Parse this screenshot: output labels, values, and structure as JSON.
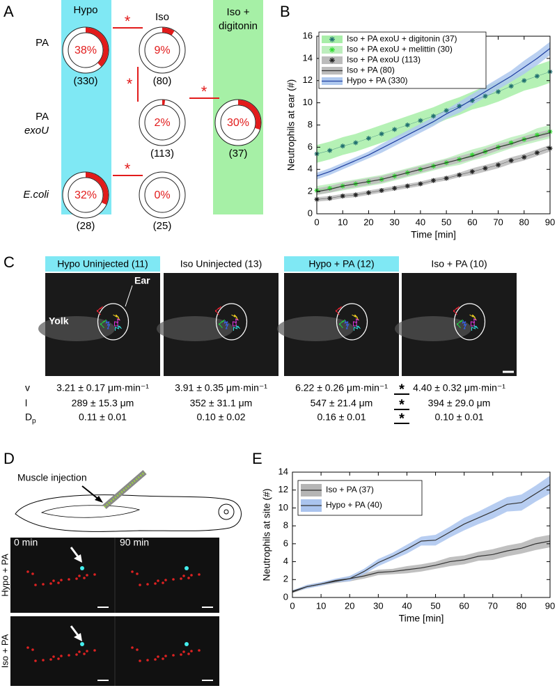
{
  "panel_labels": [
    "A",
    "B",
    "C",
    "D",
    "E"
  ],
  "panel_a": {
    "columns": [
      [
        "Hypo"
      ],
      [
        "Iso"
      ],
      [
        "Iso +",
        "digitonin"
      ]
    ],
    "rows": [
      [
        "PA"
      ],
      [
        "PA",
        "exoU"
      ],
      [
        "E.coli"
      ]
    ],
    "donuts": [
      {
        "value": 38,
        "label": "38%",
        "n": "(330)"
      },
      {
        "value": 9,
        "label": "9%",
        "n": "(80)"
      },
      {
        "value": 2,
        "label": "2%",
        "n": "(113)"
      },
      {
        "value": 30,
        "label": "30%",
        "n": "(37)"
      },
      {
        "value": 32,
        "label": "32%",
        "n": "(28)"
      },
      {
        "value": 0,
        "label": "0%",
        "n": "(25)"
      }
    ],
    "significance": [
      "*",
      "*",
      "*",
      "*"
    ]
  },
  "chart_data": [
    {
      "type": "line",
      "xlabel": "Time [min]",
      "ylabel": "Neutrophils at ear (#)",
      "x": [
        0,
        5,
        10,
        15,
        20,
        25,
        30,
        35,
        40,
        45,
        50,
        55,
        60,
        65,
        70,
        75,
        80,
        85,
        90
      ],
      "xlim": [
        0,
        90
      ],
      "xticks": [
        0,
        10,
        20,
        30,
        40,
        50,
        60,
        70,
        80,
        90
      ],
      "ylim": [
        0,
        16
      ],
      "yticks": [
        0,
        2,
        4,
        6,
        8,
        10,
        12,
        14,
        16
      ],
      "series": [
        {
          "name": "Iso + PA exoU + digitonin (37)",
          "marker": "star",
          "color": "#1f6f6f",
          "band_color": "#a8eea8",
          "values": [
            5.4,
            5.7,
            6.1,
            6.4,
            6.8,
            7.2,
            7.6,
            8.0,
            8.4,
            8.8,
            9.3,
            9.7,
            10.2,
            10.6,
            11.0,
            11.5,
            12.0,
            12.4,
            12.8
          ],
          "error": [
            0.8,
            0.8,
            0.8,
            0.8,
            0.8,
            0.8,
            0.8,
            0.8,
            0.8,
            0.8,
            0.8,
            0.8,
            0.8,
            0.9,
            0.9,
            0.9,
            0.9,
            1.0,
            1.0
          ]
        },
        {
          "name": "Iso + PA exoU + melittin (30)",
          "marker": "star",
          "color": "#33dd33",
          "band_color": "#bdeebd",
          "values": [
            2.1,
            2.3,
            2.5,
            2.7,
            2.9,
            3.1,
            3.4,
            3.7,
            4.0,
            4.3,
            4.6,
            4.9,
            5.3,
            5.6,
            6.0,
            6.4,
            6.7,
            7.1,
            7.4
          ],
          "error": [
            0.4,
            0.4,
            0.4,
            0.4,
            0.4,
            0.4,
            0.4,
            0.4,
            0.4,
            0.4,
            0.4,
            0.5,
            0.5,
            0.5,
            0.5,
            0.5,
            0.5,
            0.6,
            0.6
          ]
        },
        {
          "name": "Iso + PA exoU (113)",
          "marker": "star",
          "color": "#222222",
          "band_color": "#bbbbbb",
          "values": [
            1.3,
            1.4,
            1.6,
            1.7,
            1.9,
            2.1,
            2.3,
            2.5,
            2.7,
            3.0,
            3.2,
            3.5,
            3.8,
            4.1,
            4.4,
            4.8,
            5.1,
            5.5,
            5.9
          ],
          "error": [
            0.2,
            0.2,
            0.2,
            0.2,
            0.2,
            0.2,
            0.2,
            0.2,
            0.2,
            0.2,
            0.2,
            0.2,
            0.3,
            0.3,
            0.3,
            0.3,
            0.3,
            0.3,
            0.3
          ]
        },
        {
          "name": "Iso + PA (80)",
          "marker": "line",
          "color": "#333333",
          "band_color": "#bbbbbb",
          "values": [
            2.0,
            2.2,
            2.5,
            2.7,
            2.9,
            3.1,
            3.4,
            3.7,
            4.0,
            4.3,
            4.6,
            4.9,
            5.2,
            5.6,
            6.0,
            6.3,
            6.7,
            7.0,
            7.3
          ],
          "error": [
            0.3,
            0.3,
            0.3,
            0.3,
            0.3,
            0.3,
            0.3,
            0.3,
            0.3,
            0.3,
            0.3,
            0.3,
            0.3,
            0.3,
            0.3,
            0.3,
            0.3,
            0.3,
            0.3
          ]
        },
        {
          "name": "Hypo + PA (330)",
          "marker": "line",
          "color": "#1f3fa0",
          "band_color": "#aec8ee",
          "values": [
            3.4,
            3.8,
            4.3,
            4.8,
            5.3,
            5.9,
            6.5,
            7.1,
            7.7,
            8.3,
            9.0,
            9.6,
            10.3,
            11.0,
            11.7,
            12.4,
            13.2,
            14.0,
            14.9
          ],
          "error": [
            0.3,
            0.3,
            0.3,
            0.3,
            0.3,
            0.4,
            0.4,
            0.4,
            0.4,
            0.4,
            0.4,
            0.5,
            0.5,
            0.5,
            0.5,
            0.5,
            0.6,
            0.6,
            0.6
          ]
        }
      ]
    },
    {
      "type": "line",
      "xlabel": "Time [min]",
      "ylabel": "Neutrophils at site (#)",
      "x": [
        0,
        5,
        10,
        15,
        20,
        25,
        30,
        35,
        40,
        45,
        50,
        55,
        60,
        65,
        70,
        75,
        80,
        85,
        90
      ],
      "xlim": [
        0,
        90
      ],
      "xticks": [
        0,
        10,
        20,
        30,
        40,
        50,
        60,
        70,
        80,
        90
      ],
      "ylim": [
        0,
        14
      ],
      "yticks": [
        0,
        2,
        4,
        6,
        8,
        10,
        12,
        14
      ],
      "series": [
        {
          "name": "Iso + PA (37)",
          "marker": "line",
          "color": "#333333",
          "band_color": "#b5b5b5",
          "values": [
            0.6,
            1.2,
            1.5,
            1.8,
            2.1,
            2.4,
            2.8,
            2.9,
            3.1,
            3.3,
            3.6,
            4.0,
            4.2,
            4.6,
            4.8,
            5.2,
            5.5,
            6.0,
            6.3
          ],
          "error": [
            0.1,
            0.2,
            0.2,
            0.2,
            0.3,
            0.3,
            0.3,
            0.3,
            0.4,
            0.4,
            0.4,
            0.5,
            0.5,
            0.5,
            0.6,
            0.6,
            0.6,
            0.7,
            0.7
          ]
        },
        {
          "name": "Hypo + PA (40)",
          "marker": "line",
          "color": "#333333",
          "band_color": "#aac4ee",
          "values": [
            0.7,
            1.2,
            1.5,
            1.9,
            2.1,
            2.9,
            3.9,
            4.6,
            5.4,
            6.3,
            6.4,
            7.3,
            8.2,
            8.9,
            9.6,
            10.4,
            10.6,
            11.6,
            12.6
          ],
          "error": [
            0.1,
            0.2,
            0.2,
            0.2,
            0.3,
            0.3,
            0.4,
            0.4,
            0.5,
            0.5,
            0.6,
            0.6,
            0.7,
            0.7,
            0.8,
            0.8,
            0.9,
            0.9,
            1.0
          ]
        }
      ]
    }
  ],
  "panel_c": {
    "titles": [
      "Hypo Uninjected (11)",
      "Iso Uninjected (13)",
      "Hypo + PA (12)",
      "Iso + PA (10)"
    ],
    "features": [
      "Ear",
      "Yolk"
    ],
    "metrics": [
      "v",
      "l",
      "D"
    ],
    "metric_sub": "p",
    "rows": [
      [
        "3.21 ± 0.17 μm·min⁻¹",
        "3.91 ± 0.35 μm·min⁻¹",
        "6.22 ± 0.26 μm·min⁻¹",
        "4.40 ± 0.32 μm·min⁻¹"
      ],
      [
        "289 ± 15.3 μm",
        "352 ± 31.1 μm",
        "547 ± 21.4 μm",
        "394 ± 29.0 μm"
      ],
      [
        "0.11 ± 0.01",
        "0.10 ± 0.02",
        "0.16 ± 0.01",
        "0.10 ± 0.01"
      ]
    ],
    "significance": [
      "*",
      "*",
      "*"
    ]
  },
  "panel_d": {
    "injection": "Muscle injection",
    "times": [
      "0 min",
      "90 min"
    ],
    "conditions": [
      "Hypo + PA",
      "Iso + PA"
    ]
  }
}
